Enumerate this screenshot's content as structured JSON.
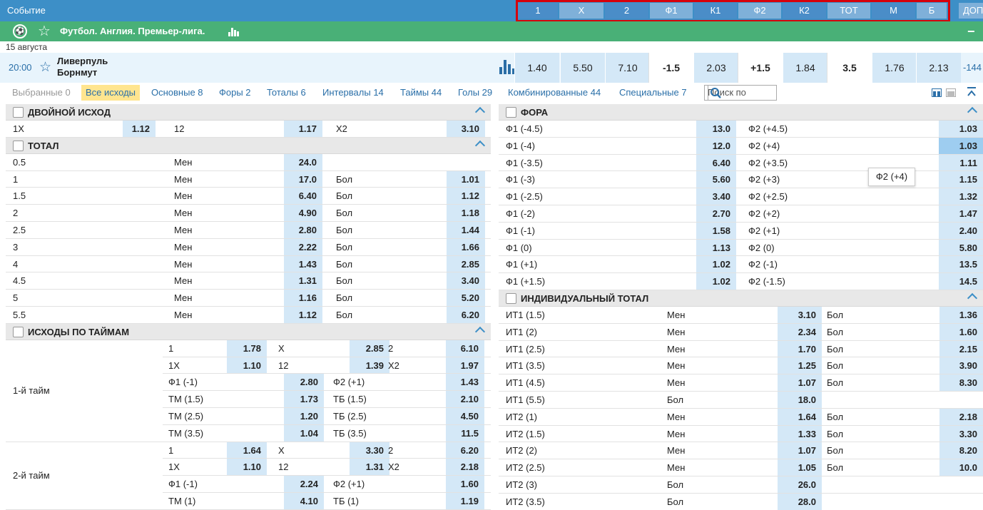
{
  "topbar": {
    "event_label": "Событие",
    "columns": [
      "1",
      "X",
      "2",
      "Ф1",
      "К1",
      "Ф2",
      "К2",
      "ТОТ",
      "М",
      "Б"
    ],
    "extra": "ДОП"
  },
  "league": {
    "name": "Футбол. Англия. Премьер-лига.",
    "collapse": "−"
  },
  "date": "15 августа",
  "event": {
    "time": "20:00",
    "team1": "Ливерпуль",
    "team2": "Борнмут",
    "cells": [
      "1.40",
      "5.50",
      "7.10",
      "-1.5",
      "2.03",
      "+1.5",
      "1.84",
      "3.5",
      "1.76",
      "2.13"
    ],
    "more": "-144"
  },
  "tabs": [
    {
      "label": "Выбранные 0",
      "state": "grey"
    },
    {
      "label": "Все исходы",
      "state": "active"
    },
    {
      "label": "Основные 8"
    },
    {
      "label": "Форы 2"
    },
    {
      "label": "Тоталы 6"
    },
    {
      "label": "Интервалы 14"
    },
    {
      "label": "Таймы 44"
    },
    {
      "label": "Голы 29"
    },
    {
      "label": "Комбинированные 44"
    },
    {
      "label": "Специальные 7"
    }
  ],
  "search": {
    "placeholder": "Поиск по"
  },
  "double": {
    "title": "Двойной исход",
    "row": [
      "1X",
      "1.12",
      "12",
      "1.17",
      "X2",
      "3.10"
    ]
  },
  "total": {
    "title": "Тотал",
    "rows": [
      [
        "0.5",
        "Мен",
        "24.0",
        "",
        ""
      ],
      [
        "1",
        "Мен",
        "17.0",
        "Бол",
        "1.01"
      ],
      [
        "1.5",
        "Мен",
        "6.40",
        "Бол",
        "1.12"
      ],
      [
        "2",
        "Мен",
        "4.90",
        "Бол",
        "1.18"
      ],
      [
        "2.5",
        "Мен",
        "2.80",
        "Бол",
        "1.44"
      ],
      [
        "3",
        "Мен",
        "2.22",
        "Бол",
        "1.66"
      ],
      [
        "4",
        "Мен",
        "1.43",
        "Бол",
        "2.85"
      ],
      [
        "4.5",
        "Мен",
        "1.31",
        "Бол",
        "3.40"
      ],
      [
        "5",
        "Мен",
        "1.16",
        "Бол",
        "5.20"
      ],
      [
        "5.5",
        "Мен",
        "1.12",
        "Бол",
        "6.20"
      ]
    ]
  },
  "halves": {
    "title": "Исходы по таймам",
    "groups": [
      {
        "label": "1-й тайм",
        "rows": [
          [
            "1",
            "1.78",
            "X",
            "2.85",
            "2",
            "6.10"
          ],
          [
            "1X",
            "1.10",
            "12",
            "1.39",
            "X2",
            "1.97"
          ],
          [
            "Ф1 (-1)",
            "2.80",
            "Ф2 (+1)",
            "1.43"
          ],
          [
            "ТМ (1.5)",
            "1.73",
            "ТБ (1.5)",
            "2.10"
          ],
          [
            "ТМ (2.5)",
            "1.20",
            "ТБ (2.5)",
            "4.50"
          ],
          [
            "ТМ (3.5)",
            "1.04",
            "ТБ (3.5)",
            "11.5"
          ]
        ]
      },
      {
        "label": "2-й тайм",
        "rows": [
          [
            "1",
            "1.64",
            "X",
            "3.30",
            "2",
            "6.20"
          ],
          [
            "1X",
            "1.10",
            "12",
            "1.31",
            "X2",
            "2.18"
          ],
          [
            "Ф1 (-1)",
            "2.24",
            "Ф2 (+1)",
            "1.60"
          ],
          [
            "ТМ (1)",
            "4.10",
            "ТБ (1)",
            "1.19"
          ]
        ]
      }
    ]
  },
  "fora": {
    "title": "Фора",
    "rows": [
      [
        "Ф1 (-4.5)",
        "13.0",
        "Ф2 (+4.5)",
        "1.03"
      ],
      [
        "Ф1 (-4)",
        "12.0",
        "Ф2 (+4)",
        "1.03"
      ],
      [
        "Ф1 (-3.5)",
        "6.40",
        "Ф2 (+3.5)",
        "1.11"
      ],
      [
        "Ф1 (-3)",
        "5.60",
        "Ф2 (+3)",
        "1.15"
      ],
      [
        "Ф1 (-2.5)",
        "3.40",
        "Ф2 (+2.5)",
        "1.32"
      ],
      [
        "Ф1 (-2)",
        "2.70",
        "Ф2 (+2)",
        "1.47"
      ],
      [
        "Ф1 (-1)",
        "1.58",
        "Ф2 (+1)",
        "2.40"
      ],
      [
        "Ф1 (0)",
        "1.13",
        "Ф2 (0)",
        "5.80"
      ],
      [
        "Ф1 (+1)",
        "1.02",
        "Ф2 (-1)",
        "13.5"
      ],
      [
        "Ф1 (+1.5)",
        "1.02",
        "Ф2 (-1.5)",
        "14.5"
      ]
    ]
  },
  "indiv": {
    "title": "Индивидуальный тотал",
    "rows": [
      [
        "ИТ1 (1.5)",
        "Мен",
        "3.10",
        "Бол",
        "1.36"
      ],
      [
        "ИТ1 (2)",
        "Мен",
        "2.34",
        "Бол",
        "1.60"
      ],
      [
        "ИТ1 (2.5)",
        "Мен",
        "1.70",
        "Бол",
        "2.15"
      ],
      [
        "ИТ1 (3.5)",
        "Мен",
        "1.25",
        "Бол",
        "3.90"
      ],
      [
        "ИТ1 (4.5)",
        "Мен",
        "1.07",
        "Бол",
        "8.30"
      ],
      [
        "ИТ1 (5.5)",
        "Бол",
        "18.0",
        "",
        ""
      ],
      [
        "ИТ2 (1)",
        "Мен",
        "1.64",
        "Бол",
        "2.18"
      ],
      [
        "ИТ2 (1.5)",
        "Мен",
        "1.33",
        "Бол",
        "3.30"
      ],
      [
        "ИТ2 (2)",
        "Мен",
        "1.07",
        "Бол",
        "8.20"
      ],
      [
        "ИТ2 (2.5)",
        "Мен",
        "1.05",
        "Бол",
        "10.0"
      ],
      [
        "ИТ2 (3)",
        "Бол",
        "26.0",
        "",
        ""
      ],
      [
        "ИТ2 (3.5)",
        "Бол",
        "28.0",
        "",
        ""
      ]
    ]
  },
  "tooltip": "Ф2 (+4)"
}
